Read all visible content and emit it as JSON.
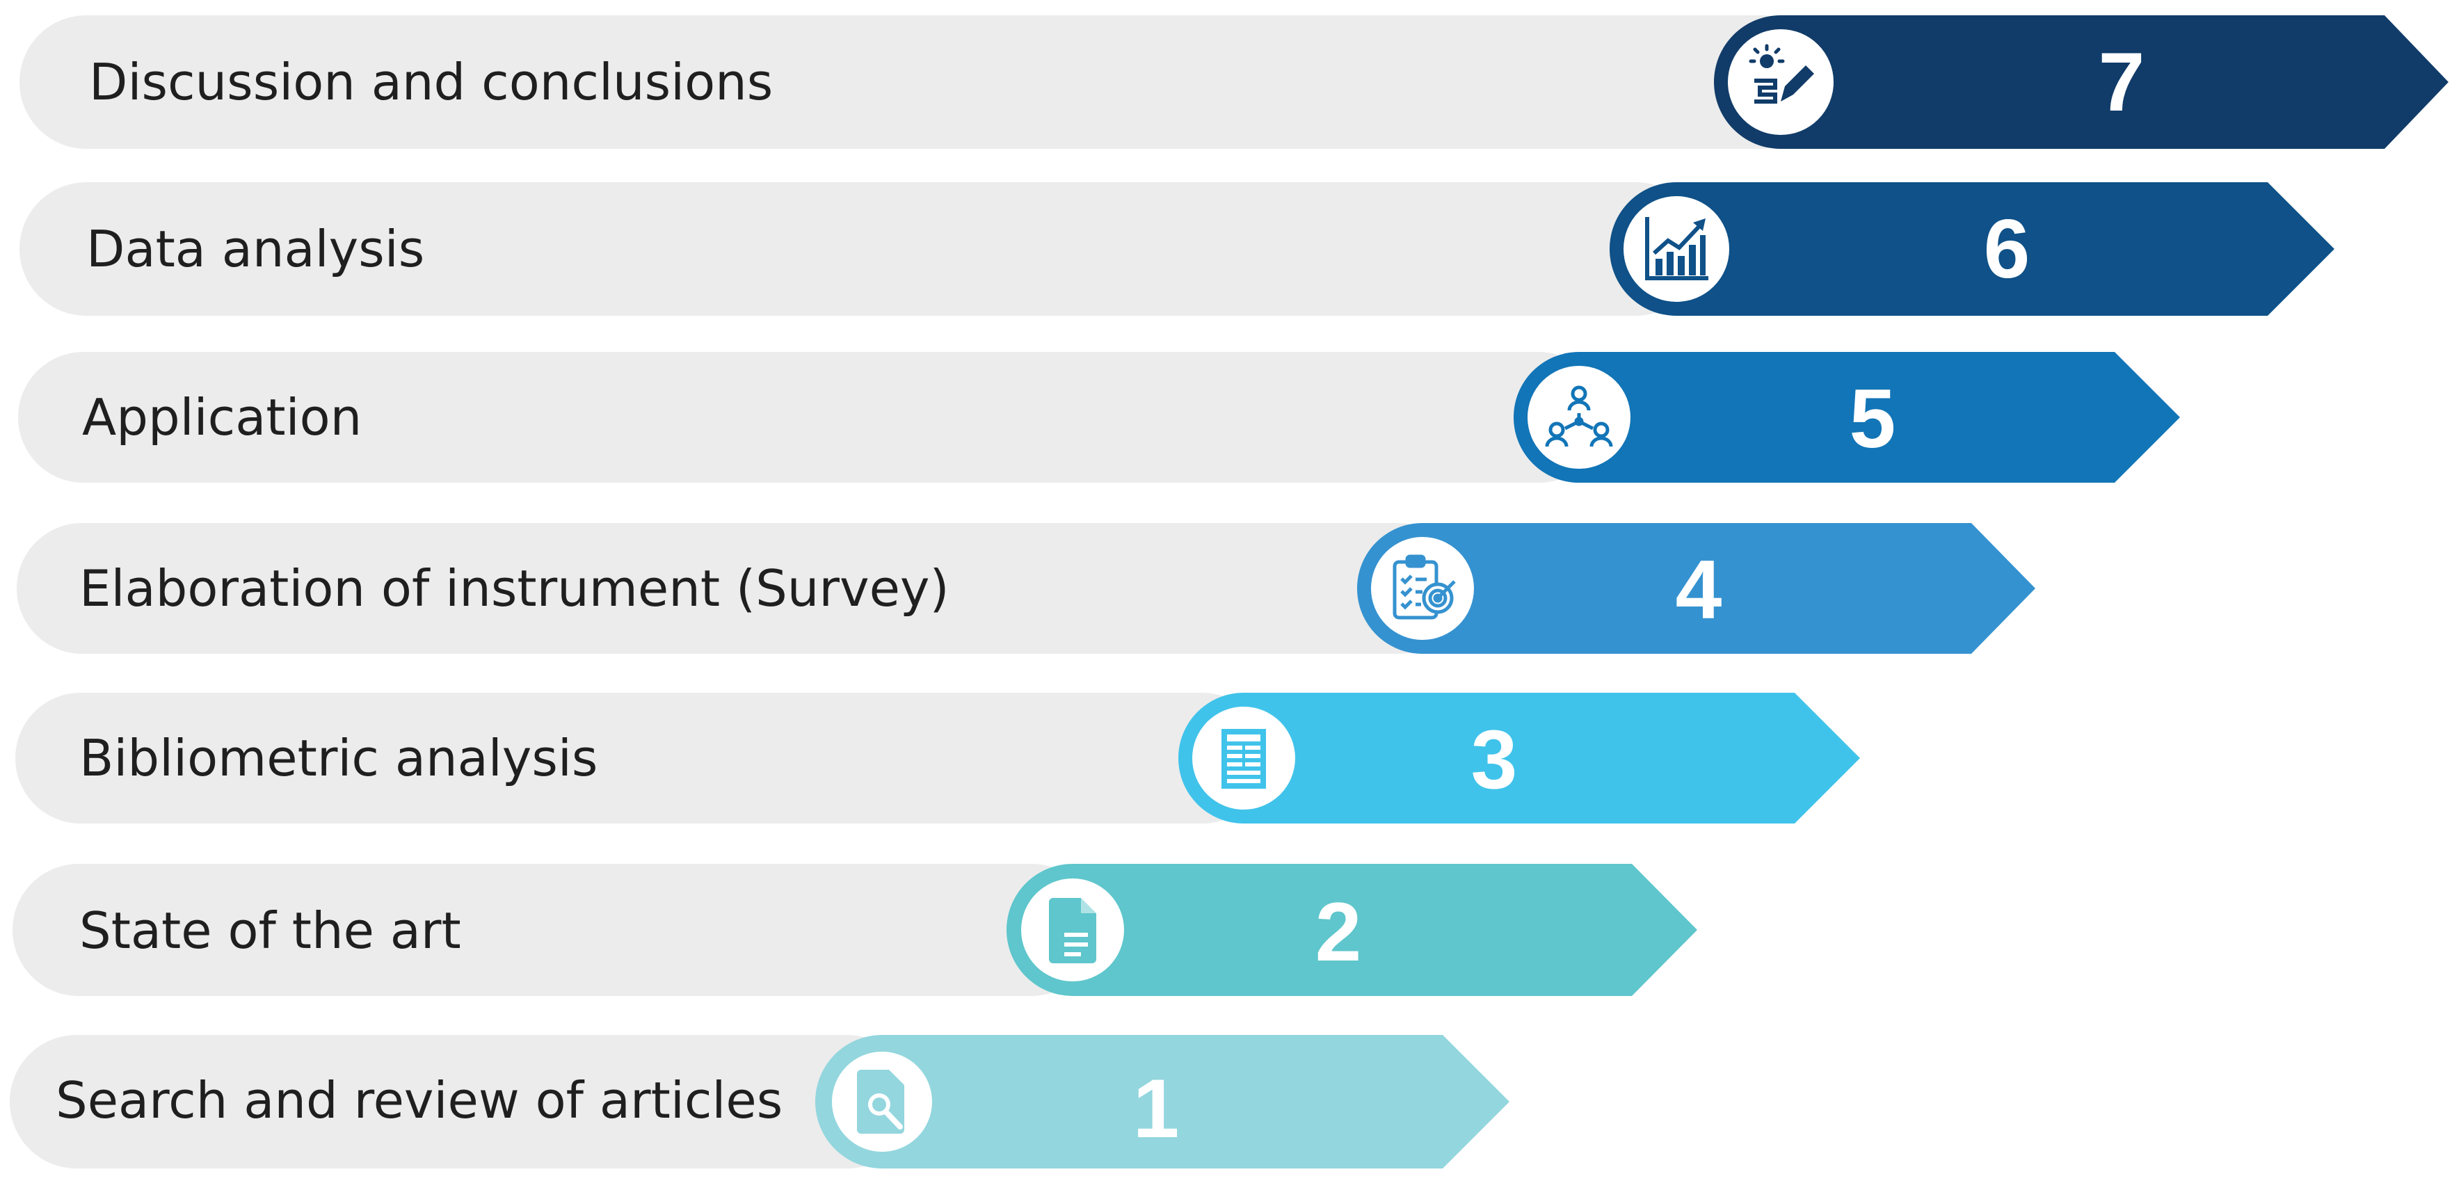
{
  "steps": [
    {
      "number": "1",
      "label": "Search and review of articles",
      "color": "#93d6de",
      "icon": "search-document-icon"
    },
    {
      "number": "2",
      "label": "State of the art",
      "color": "#5ec6cc",
      "icon": "document-icon"
    },
    {
      "number": "3",
      "label": "Bibliometric analysis",
      "color": "#40c3ea",
      "icon": "newspaper-icon"
    },
    {
      "number": "4",
      "label": "Elaboration of instrument (Survey)",
      "color": "#3592d0",
      "icon": "clipboard-target-icon"
    },
    {
      "number": "5",
      "label": "Application",
      "color": "#1275b7",
      "icon": "people-network-icon"
    },
    {
      "number": "6",
      "label": "Data analysis",
      "color": "#0f5188",
      "icon": "growth-chart-icon"
    },
    {
      "number": "7",
      "label": "Discussion and conclusions",
      "color": "#113c69",
      "icon": "idea-pencil-icon"
    }
  ],
  "colors": {
    "pill": "#ececec",
    "text": "#1f1f1f",
    "number": "#ffffff"
  }
}
